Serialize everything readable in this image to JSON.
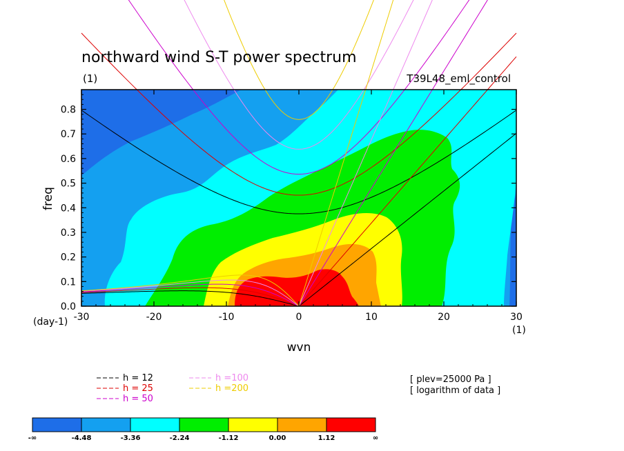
{
  "chart_data": {
    "type": "heatmap",
    "title": "northward wind S-T power spectrum",
    "units_top_left": "(1)",
    "case_name": "T39L48_eml_control",
    "xlabel": "wvn",
    "ylabel": "freq",
    "x_unit_label": "(1)",
    "y_unit_label": "(day-1)",
    "xlim": [
      -30,
      30
    ],
    "ylim": [
      0,
      0.88
    ],
    "x_ticks": [
      "-30",
      "-20",
      "-10",
      "0",
      "10",
      "20",
      "30"
    ],
    "y_ticks": [
      "0.0",
      "0.1",
      "0.2",
      "0.3",
      "0.4",
      "0.5",
      "0.6",
      "0.7",
      "0.8"
    ],
    "contour_levels": [
      -4.48,
      -3.36,
      -2.24,
      -1.12,
      0.0,
      1.12
    ],
    "colorbar_labels": [
      "-∞",
      "-4.48",
      "-3.36",
      "-2.24",
      "-1.12",
      "0.00",
      "1.12",
      "∞"
    ],
    "colorbar_colors": [
      "#1e6ee8",
      "#14a0f0",
      "#00ffff",
      "#00ee00",
      "#ffff00",
      "#ffa500",
      "#ff0000"
    ],
    "dispersion_curves": [
      {
        "label": "h = 12",
        "h": 12,
        "color": "#000000"
      },
      {
        "label": "h = 25",
        "h": 25,
        "color": "#dd0000"
      },
      {
        "label": "h = 50",
        "h": 50,
        "color": "#cc00cc"
      },
      {
        "label": "h =100",
        "h": 100,
        "color": "#ee88ee"
      },
      {
        "label": "h =200",
        "h": 200,
        "color": "#eecc00"
      }
    ],
    "notes": [
      "[ plev=25000 Pa ]",
      "[ logarithm of data ]"
    ]
  }
}
